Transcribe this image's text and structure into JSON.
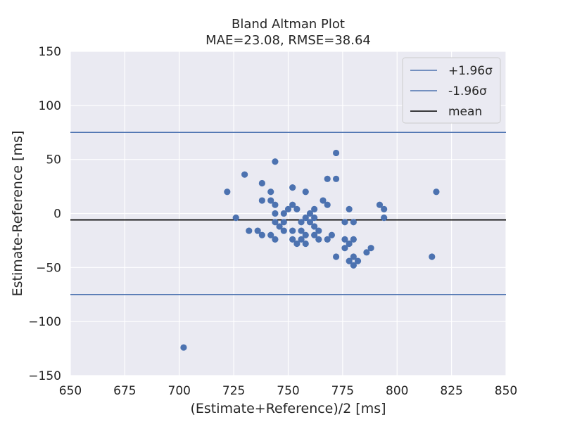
{
  "chart_data": {
    "type": "scatter",
    "title": "Bland Altman Plot",
    "subtitle": "MAE=23.08, RMSE=38.64",
    "xlabel": "(Estimate+Reference)/2 [ms]",
    "ylabel": "Estimate-Reference [ms]",
    "xlim": [
      650,
      850
    ],
    "ylim": [
      -150,
      150
    ],
    "x_ticks": [
      "650",
      "675",
      "700",
      "725",
      "750",
      "775",
      "800",
      "825",
      "850"
    ],
    "y_ticks": [
      "150",
      "100",
      "50",
      "0",
      "−50",
      "−100",
      "−150"
    ],
    "grid": true,
    "legend_position": "top-right",
    "lines": [
      {
        "name": "+1.96σ",
        "y": 75,
        "color": "#4c72b0"
      },
      {
        "name": "-1.96σ",
        "y": -75,
        "color": "#4c72b0"
      },
      {
        "name": "mean",
        "y": -6,
        "color": "#000000"
      }
    ],
    "point_color": "#4c72b0",
    "points": [
      {
        "x": 702,
        "y": -124
      },
      {
        "x": 722,
        "y": 20
      },
      {
        "x": 726,
        "y": -4
      },
      {
        "x": 730,
        "y": 36
      },
      {
        "x": 732,
        "y": -16
      },
      {
        "x": 736,
        "y": -16
      },
      {
        "x": 738,
        "y": 28
      },
      {
        "x": 738,
        "y": 12
      },
      {
        "x": 738,
        "y": -20
      },
      {
        "x": 742,
        "y": 20
      },
      {
        "x": 742,
        "y": 12
      },
      {
        "x": 742,
        "y": -20
      },
      {
        "x": 744,
        "y": 48
      },
      {
        "x": 744,
        "y": 8
      },
      {
        "x": 744,
        "y": 0
      },
      {
        "x": 744,
        "y": -8
      },
      {
        "x": 744,
        "y": -24
      },
      {
        "x": 746,
        "y": -12
      },
      {
        "x": 748,
        "y": 0
      },
      {
        "x": 748,
        "y": -8
      },
      {
        "x": 748,
        "y": -16
      },
      {
        "x": 750,
        "y": 4
      },
      {
        "x": 752,
        "y": 24
      },
      {
        "x": 752,
        "y": 8
      },
      {
        "x": 752,
        "y": -16
      },
      {
        "x": 752,
        "y": -24
      },
      {
        "x": 754,
        "y": 4
      },
      {
        "x": 754,
        "y": -28
      },
      {
        "x": 756,
        "y": -8
      },
      {
        "x": 756,
        "y": -16
      },
      {
        "x": 756,
        "y": -24
      },
      {
        "x": 758,
        "y": 20
      },
      {
        "x": 758,
        "y": -4
      },
      {
        "x": 758,
        "y": -20
      },
      {
        "x": 758,
        "y": -28
      },
      {
        "x": 760,
        "y": 0
      },
      {
        "x": 760,
        "y": -8
      },
      {
        "x": 762,
        "y": 4
      },
      {
        "x": 762,
        "y": -4
      },
      {
        "x": 762,
        "y": -12
      },
      {
        "x": 762,
        "y": -20
      },
      {
        "x": 764,
        "y": -16
      },
      {
        "x": 764,
        "y": -24
      },
      {
        "x": 766,
        "y": 12
      },
      {
        "x": 768,
        "y": 32
      },
      {
        "x": 768,
        "y": 8
      },
      {
        "x": 768,
        "y": -24
      },
      {
        "x": 770,
        "y": -20
      },
      {
        "x": 772,
        "y": 56
      },
      {
        "x": 772,
        "y": 32
      },
      {
        "x": 772,
        "y": -40
      },
      {
        "x": 776,
        "y": -8
      },
      {
        "x": 776,
        "y": -24
      },
      {
        "x": 776,
        "y": -32
      },
      {
        "x": 778,
        "y": 4
      },
      {
        "x": 778,
        "y": -28
      },
      {
        "x": 778,
        "y": -44
      },
      {
        "x": 780,
        "y": -8
      },
      {
        "x": 780,
        "y": -24
      },
      {
        "x": 780,
        "y": -40
      },
      {
        "x": 780,
        "y": -48
      },
      {
        "x": 782,
        "y": -44
      },
      {
        "x": 786,
        "y": -36
      },
      {
        "x": 788,
        "y": -32
      },
      {
        "x": 792,
        "y": 8
      },
      {
        "x": 794,
        "y": 4
      },
      {
        "x": 794,
        "y": -4
      },
      {
        "x": 816,
        "y": -40
      },
      {
        "x": 818,
        "y": 20
      }
    ]
  }
}
